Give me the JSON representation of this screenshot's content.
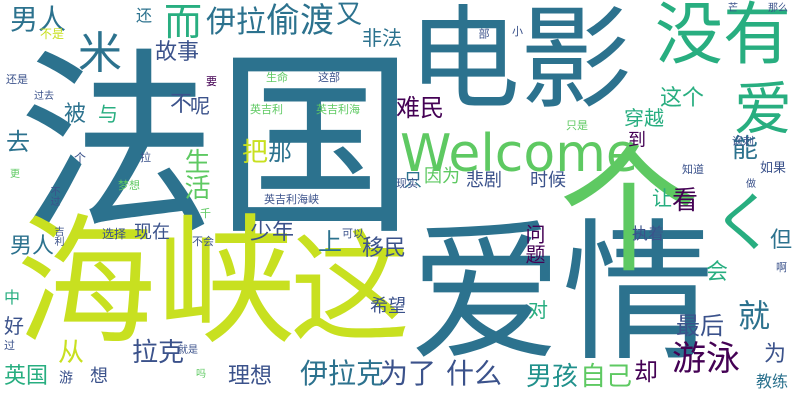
{
  "palette": {
    "purple": "#440154",
    "indigo": "#3b528b",
    "blue": "#2c728e",
    "teal": "#21918c",
    "green": "#28ae80",
    "lime": "#5ec962",
    "yellow": "#c8e020",
    "gold": "#fde725"
  },
  "words": [
    {
      "text": "法国",
      "color": "#2c728e"
    },
    {
      "text": "电影",
      "color": "#2c728e"
    },
    {
      "text": "爱情",
      "color": "#2c728e"
    },
    {
      "text": "海峡",
      "color": "#c8e020"
    },
    {
      "text": "这",
      "color": "#c8e020"
    },
    {
      "text": "个",
      "color": "#5ec962"
    },
    {
      "text": "Welcome",
      "color": "#5ec962"
    },
    {
      "text": "没有",
      "color": "#28ae80"
    },
    {
      "text": "爱",
      "color": "#28ae80"
    },
    {
      "text": "男人",
      "color": "#2c728e"
    },
    {
      "text": "米",
      "color": "#2c728e"
    },
    {
      "text": "而",
      "color": "#28ae80"
    },
    {
      "text": "伊拉",
      "color": "#2c728e"
    },
    {
      "text": "偷渡",
      "color": "#2c728e"
    },
    {
      "text": "又",
      "color": "#2c728e"
    },
    {
      "text": "非法",
      "color": "#2c728e"
    },
    {
      "text": "还",
      "color": "#2c728e"
    },
    {
      "text": "不是",
      "color": "#c8e020"
    },
    {
      "text": "故事",
      "color": "#3b528b"
    },
    {
      "text": "这个",
      "color": "#28ae80"
    },
    {
      "text": "被",
      "color": "#2c728e"
    },
    {
      "text": "与",
      "color": "#28ae80"
    },
    {
      "text": "不",
      "color": "#3b528b"
    },
    {
      "text": "呢",
      "color": "#3b528b"
    },
    {
      "text": "难民",
      "color": "#440154"
    },
    {
      "text": "穿越",
      "color": "#28ae80"
    },
    {
      "text": "能",
      "color": "#2c728e"
    },
    {
      "text": "去",
      "color": "#2c728e"
    },
    {
      "text": "把",
      "color": "#c8e020"
    },
    {
      "text": "那",
      "color": "#2c728e"
    },
    {
      "text": "生活",
      "color": "#5ec962"
    },
    {
      "text": "到",
      "color": "#440154"
    },
    {
      "text": "因为",
      "color": "#5ec962"
    },
    {
      "text": "只",
      "color": "#2c728e"
    },
    {
      "text": "悲剧",
      "color": "#3b528b"
    },
    {
      "text": "时候",
      "color": "#3b528b"
    },
    {
      "text": "让",
      "color": "#28ae80"
    },
    {
      "text": "看",
      "color": "#440154"
    },
    {
      "text": "く",
      "color": "#28ae80"
    },
    {
      "text": "少年",
      "color": "#3b528b"
    },
    {
      "text": "上",
      "color": "#2c728e"
    },
    {
      "text": "移民",
      "color": "#3b528b"
    },
    {
      "text": "问题",
      "color": "#440154"
    },
    {
      "text": "但",
      "color": "#2c728e"
    },
    {
      "text": "会",
      "color": "#28ae80"
    },
    {
      "text": "就",
      "color": "#2c728e"
    },
    {
      "text": "男人",
      "color": "#2c728e"
    },
    {
      "text": "好",
      "color": "#3b528b"
    },
    {
      "text": "中",
      "color": "#28ae80"
    },
    {
      "text": "希望",
      "color": "#3b528b"
    },
    {
      "text": "对",
      "color": "#28ae80"
    },
    {
      "text": "最后",
      "color": "#3b528b"
    },
    {
      "text": "为",
      "color": "#3b528b"
    },
    {
      "text": "游泳",
      "color": "#440154"
    },
    {
      "text": "从",
      "color": "#c8e020"
    },
    {
      "text": "拉克",
      "color": "#3b528b"
    },
    {
      "text": "理想",
      "color": "#3b528b"
    },
    {
      "text": "伊拉克",
      "color": "#2c728e"
    },
    {
      "text": "为了",
      "color": "#3b528b"
    },
    {
      "text": "什么",
      "color": "#3b528b"
    },
    {
      "text": "男孩",
      "color": "#21918c"
    },
    {
      "text": "自己",
      "color": "#5ec962"
    },
    {
      "text": "却",
      "color": "#440154"
    },
    {
      "text": "英国",
      "color": "#28ae80"
    },
    {
      "text": "游",
      "color": "#3b528b"
    },
    {
      "text": "想",
      "color": "#3b528b"
    },
    {
      "text": "教练",
      "color": "#2c728e"
    },
    {
      "text": "现在",
      "color": "#3b528b"
    },
    {
      "text": "选择",
      "color": "#3b528b"
    },
    {
      "text": "不会",
      "color": "#3b528b"
    },
    {
      "text": "可以",
      "color": "#3b528b"
    },
    {
      "text": "执着",
      "color": "#3b528b"
    },
    {
      "text": "梦想",
      "color": "#5ec962"
    },
    {
      "text": "英吉利",
      "color": "#5ec962"
    },
    {
      "text": "英吉利海",
      "color": "#5ec962"
    },
    {
      "text": "英吉利海峡",
      "color": "#3b528b"
    },
    {
      "text": "生命",
      "color": "#5ec962"
    },
    {
      "text": "这部",
      "color": "#3b528b"
    },
    {
      "text": "部",
      "color": "#3b528b"
    },
    {
      "text": "小",
      "color": "#3b528b"
    },
    {
      "text": "要",
      "color": "#440154"
    },
    {
      "text": "还是",
      "color": "#3b528b"
    },
    {
      "text": "过去",
      "color": "#3b528b"
    },
    {
      "text": "拉",
      "color": "#3b528b"
    },
    {
      "text": "个",
      "color": "#3b528b"
    },
    {
      "text": "只是",
      "color": "#5ec962"
    },
    {
      "text": "讽刺",
      "color": "#3b528b"
    },
    {
      "text": "知道",
      "color": "#3b528b"
    },
    {
      "text": "如果",
      "color": "#3b528b"
    },
    {
      "text": "做",
      "color": "#3b528b"
    },
    {
      "text": "芒",
      "color": "#3b528b"
    },
    {
      "text": "那么",
      "color": "#3b528b"
    },
    {
      "text": "现实",
      "color": "#3b528b"
    },
    {
      "text": "更",
      "color": "#5ec962"
    },
    {
      "text": "不过",
      "color": "#3b528b"
    },
    {
      "text": "吉利",
      "color": "#3b528b"
    },
    {
      "text": "过",
      "color": "#3b528b"
    },
    {
      "text": "吗",
      "color": "#5ec962"
    },
    {
      "text": "就是",
      "color": "#3b528b"
    },
    {
      "text": "千",
      "color": "#5ec962"
    },
    {
      "text": "啊",
      "color": "#3b528b"
    }
  ]
}
